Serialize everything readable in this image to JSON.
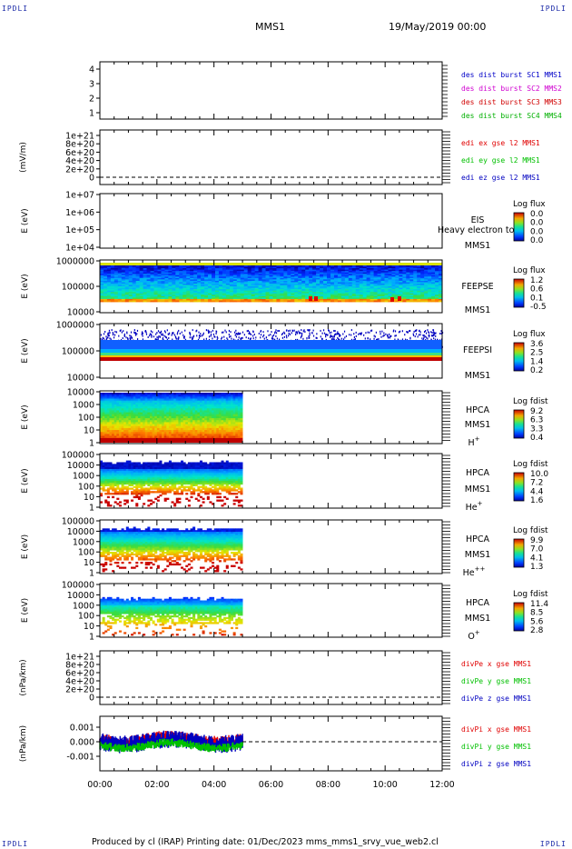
{
  "corner_tl": "IPDLI",
  "corner_tr": "IPDLI",
  "corner_bl": "IPDLI",
  "corner_br": "IPDLI",
  "mission": "MMS1",
  "datetime": "19/May/2019 00:00",
  "footer": "Produced by cl (IRAP)    Printing date: 01/Dec/2023    mms_mms1_srvy_vue_web2.cl",
  "colors": {
    "mms1": "#0000c8",
    "mms2": "#d000d0",
    "mms3": "#d00000",
    "mms4": "#00b000",
    "x_red": "#e00000",
    "y_green": "#00c000",
    "z_blue": "#0000c0"
  },
  "chart_data": {
    "type": "heatmap",
    "x_ticks": [
      "00:00",
      "02:00",
      "04:00",
      "06:00",
      "08:00",
      "10:00",
      "12:00"
    ],
    "x_range_hours": [
      0,
      12
    ],
    "data_end_hours": 5.0,
    "panels": [
      {
        "id": "dist-burst",
        "ytick_labels": [
          "4",
          "3",
          "2",
          "1"
        ],
        "ylabel": "",
        "legend": [
          {
            "text": "des dist burst SC1 MMS1",
            "color_key": "mms1"
          },
          {
            "text": "des dist burst SC2 MMS2",
            "color_key": "mms2"
          },
          {
            "text": "des dist burst SC3 MMS3",
            "color_key": "mms3"
          },
          {
            "text": "des dist burst SC4 MMS4",
            "color_key": "mms4"
          }
        ]
      },
      {
        "id": "edi-e",
        "ytick_labels": [
          "1e+21",
          "8e+20",
          "6e+20",
          "4e+20",
          "2e+20",
          "0"
        ],
        "ylabel": "(mV/m)",
        "legend": [
          {
            "text": "edi ex gse l2 MMS1",
            "color_key": "x_red"
          },
          {
            "text": "edi ey gse l2 MMS1",
            "color_key": "y_green"
          },
          {
            "text": "edi ez gse l2 MMS1",
            "color_key": "z_blue"
          }
        ]
      },
      {
        "id": "eis",
        "ytick_labels": [
          "1e+07",
          "1e+06",
          "1e+05",
          "1e+04"
        ],
        "ylabel": "E (eV)",
        "inst": [
          "EIS",
          "MMS1"
        ],
        "overlay": "Heavy electron to",
        "cb_title": "Log flux",
        "cb_values": [
          "0.0",
          "0.0",
          "0.0",
          "0.0"
        ]
      },
      {
        "id": "feepse",
        "ytick_labels": [
          "1000000",
          "100000",
          "10000"
        ],
        "ylabel": "E (eV)",
        "inst": [
          "FEEPSE",
          "MMS1"
        ],
        "cb_title": "Log flux",
        "cb_values": [
          "1.2",
          "0.6",
          "0.1",
          "-0.5"
        ]
      },
      {
        "id": "feepsi",
        "ytick_labels": [
          "1000000",
          "100000",
          "10000"
        ],
        "ylabel": "E (eV)",
        "inst": [
          "FEEPSI",
          "MMS1"
        ],
        "cb_title": "Log flux",
        "cb_values": [
          "3.6",
          "2.5",
          "1.4",
          "0.2"
        ]
      },
      {
        "id": "hpca-h",
        "ytick_labels": [
          "10000",
          "1000",
          "100",
          "10",
          "1"
        ],
        "ylabel": "E (eV)",
        "inst": [
          "HPCA",
          "MMS1"
        ],
        "species": "H",
        "species_sup": "+",
        "cb_title": "Log fdist",
        "cb_values": [
          "9.2",
          "6.3",
          "3.3",
          "0.4"
        ]
      },
      {
        "id": "hpca-he",
        "ytick_labels": [
          "100000",
          "10000",
          "1000",
          "100",
          "10",
          "1"
        ],
        "ylabel": "E (eV)",
        "inst": [
          "HPCA",
          "MMS1"
        ],
        "species": "He",
        "species_sup": "+",
        "cb_title": "Log fdist",
        "cb_values": [
          "10.0",
          "7.2",
          "4.4",
          "1.6"
        ]
      },
      {
        "id": "hpca-hepp",
        "ytick_labels": [
          "100000",
          "10000",
          "1000",
          "100",
          "10",
          "1"
        ],
        "ylabel": "E (eV)",
        "inst": [
          "HPCA",
          "MMS1"
        ],
        "species": "He",
        "species_sup": "++",
        "cb_title": "Log fdist",
        "cb_values": [
          "9.9",
          "7.0",
          "4.1",
          "1.3"
        ]
      },
      {
        "id": "hpca-o",
        "ytick_labels": [
          "100000",
          "10000",
          "1000",
          "100",
          "10",
          "1"
        ],
        "ylabel": "E (eV)",
        "inst": [
          "HPCA",
          "MMS1"
        ],
        "species": "O",
        "species_sup": "+",
        "cb_title": "Log fdist",
        "cb_values": [
          "11.4",
          "8.5",
          "5.6",
          "2.8"
        ]
      },
      {
        "id": "divpe",
        "ytick_labels": [
          "1e+21",
          "8e+20",
          "6e+20",
          "4e+20",
          "2e+20",
          "0"
        ],
        "ylabel": "(nPa/km)",
        "legend": [
          {
            "text": "divPe x gse MMS1",
            "color_key": "x_red"
          },
          {
            "text": "divPe y gse MMS1",
            "color_key": "y_green"
          },
          {
            "text": "divPe z gse MMS1",
            "color_key": "z_blue"
          }
        ]
      },
      {
        "id": "divpi",
        "ytick_labels": [
          "0.001",
          "0.000",
          "-0.001"
        ],
        "ylabel": "(nPa/km)",
        "legend": [
          {
            "text": "divPi x gse MMS1",
            "color_key": "x_red"
          },
          {
            "text": "divPi y gse MMS1",
            "color_key": "y_green"
          },
          {
            "text": "divPi z gse MMS1",
            "color_key": "z_blue"
          }
        ]
      }
    ]
  }
}
